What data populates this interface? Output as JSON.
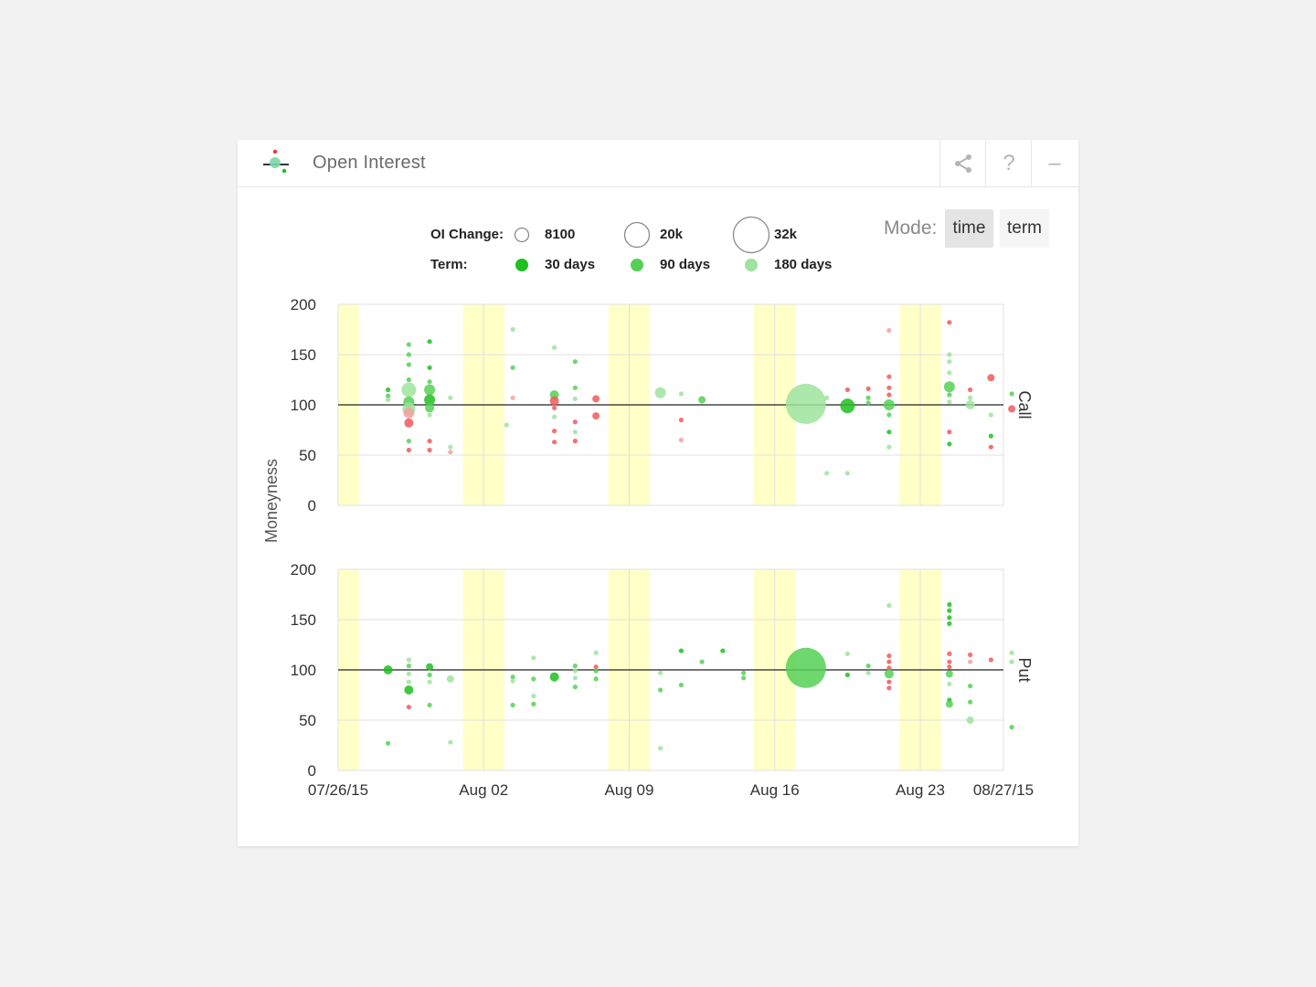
{
  "header": {
    "title": "Open Interest",
    "share_icon": "share-icon",
    "help_label": "?",
    "minimize_label": "–"
  },
  "legend": {
    "oi_change_label": "OI Change:",
    "size_items": [
      "8100",
      "20k",
      "32k"
    ],
    "term_label": "Term:",
    "term_items": [
      "30 days",
      "90 days",
      "180 days"
    ],
    "term_colors": [
      "#1fbf1f",
      "#55d055",
      "#9ee39e"
    ]
  },
  "mode": {
    "label": "Mode:",
    "options": [
      "time",
      "term"
    ],
    "active": "time"
  },
  "colors": {
    "highlight": "#ffffc8",
    "increase_30": "#1fbf1f",
    "increase_90": "#55d055",
    "increase_180": "#9ee39e",
    "decrease": "#ef5a5a",
    "decrease_light": "#f4a0a0",
    "gridline": "#e0e0e0",
    "reference_line": "#222222"
  },
  "chart_data": {
    "type": "scatter",
    "ylabel": "Moneyness",
    "ylim": [
      0,
      200
    ],
    "yticks": [
      0,
      50,
      100,
      150,
      200
    ],
    "xlim": [
      "2015-07-26",
      "2015-08-27"
    ],
    "xticks": [
      {
        "date": "2015-07-26",
        "label": "07/26/15"
      },
      {
        "date": "2015-08-02",
        "label": "Aug 02"
      },
      {
        "date": "2015-08-09",
        "label": "Aug 09"
      },
      {
        "date": "2015-08-16",
        "label": "Aug 16"
      },
      {
        "date": "2015-08-23",
        "label": "Aug 23"
      },
      {
        "date": "2015-08-27",
        "label": "08/27/15"
      }
    ],
    "weekend_bands": [
      [
        "2015-07-26",
        "2015-07-27"
      ],
      [
        "2015-08-01",
        "2015-08-03"
      ],
      [
        "2015-08-08",
        "2015-08-10"
      ],
      [
        "2015-08-15",
        "2015-08-17"
      ],
      [
        "2015-08-22",
        "2015-08-24"
      ],
      [
        "2015-08-27",
        "2015-08-28"
      ]
    ],
    "reference_y": 100,
    "panels": [
      {
        "name": "Call",
        "points": [
          {
            "date": "2015-07-28.4",
            "y": 115,
            "c": "30"
          },
          {
            "date": "2015-07-28.4",
            "y": 109,
            "c": "90"
          },
          {
            "date": "2015-07-28.4",
            "y": 105,
            "c": "180"
          },
          {
            "date": "2015-07-29.4",
            "y": 160,
            "c": "90"
          },
          {
            "date": "2015-07-29.4",
            "y": 150,
            "c": "90"
          },
          {
            "date": "2015-07-29.4",
            "y": 140,
            "c": "90"
          },
          {
            "date": "2015-07-29.4",
            "y": 125,
            "c": "90"
          },
          {
            "date": "2015-07-29.4",
            "y": 115,
            "c": "180",
            "s": 8
          },
          {
            "date": "2015-07-29.4",
            "y": 103,
            "c": "90",
            "s": 6
          },
          {
            "date": "2015-07-29.4",
            "y": 96,
            "c": "180",
            "s": 7
          },
          {
            "date": "2015-07-29.4",
            "y": 92,
            "c": "rl",
            "s": 6
          },
          {
            "date": "2015-07-29.4",
            "y": 82,
            "c": "r",
            "s": 5
          },
          {
            "date": "2015-07-29.4",
            "y": 64,
            "c": "90"
          },
          {
            "date": "2015-07-29.4",
            "y": 55,
            "c": "r"
          },
          {
            "date": "2015-07-30.4",
            "y": 163,
            "c": "30"
          },
          {
            "date": "2015-07-30.4",
            "y": 137,
            "c": "30"
          },
          {
            "date": "2015-07-30.4",
            "y": 123,
            "c": "90"
          },
          {
            "date": "2015-07-30.4",
            "y": 115,
            "c": "90",
            "s": 6
          },
          {
            "date": "2015-07-30.4",
            "y": 105,
            "c": "30",
            "s": 6
          },
          {
            "date": "2015-07-30.4",
            "y": 97,
            "c": "90",
            "s": 5
          },
          {
            "date": "2015-07-30.4",
            "y": 90,
            "c": "180"
          },
          {
            "date": "2015-07-30.4",
            "y": 64,
            "c": "r"
          },
          {
            "date": "2015-07-30.4",
            "y": 55,
            "c": "r"
          },
          {
            "date": "2015-07-31.4",
            "y": 107,
            "c": "180"
          },
          {
            "date": "2015-07-31.4",
            "y": 58,
            "c": "180"
          },
          {
            "date": "2015-07-31.4",
            "y": 53,
            "c": "rl"
          },
          {
            "date": "2015-08-03.4",
            "y": 175,
            "c": "180"
          },
          {
            "date": "2015-08-03.4",
            "y": 137,
            "c": "90"
          },
          {
            "date": "2015-08-03.4",
            "y": 107,
            "c": "rl"
          },
          {
            "date": "2015-08-03.1",
            "y": 80,
            "c": "180"
          },
          {
            "date": "2015-08-05.4",
            "y": 157,
            "c": "180"
          },
          {
            "date": "2015-08-05.4",
            "y": 110,
            "c": "90",
            "s": 5
          },
          {
            "date": "2015-08-05.4",
            "y": 104,
            "c": "r",
            "s": 5
          },
          {
            "date": "2015-08-05.4",
            "y": 97,
            "c": "r"
          },
          {
            "date": "2015-08-05.4",
            "y": 88,
            "c": "180"
          },
          {
            "date": "2015-08-05.4",
            "y": 74,
            "c": "r"
          },
          {
            "date": "2015-08-05.4",
            "y": 63,
            "c": "r"
          },
          {
            "date": "2015-08-06.4",
            "y": 143,
            "c": "90"
          },
          {
            "date": "2015-08-06.4",
            "y": 117,
            "c": "90"
          },
          {
            "date": "2015-08-06.4",
            "y": 106,
            "c": "180"
          },
          {
            "date": "2015-08-06.4",
            "y": 83,
            "c": "r"
          },
          {
            "date": "2015-08-06.4",
            "y": 73,
            "c": "180"
          },
          {
            "date": "2015-08-06.4",
            "y": 64,
            "c": "r"
          },
          {
            "date": "2015-08-07.4",
            "y": 106,
            "c": "r",
            "s": 4
          },
          {
            "date": "2015-08-07.4",
            "y": 89,
            "c": "r",
            "s": 4
          },
          {
            "date": "2015-08-10.5",
            "y": 112,
            "c": "180",
            "s": 6
          },
          {
            "date": "2015-08-11.5",
            "y": 111,
            "c": "180"
          },
          {
            "date": "2015-08-11.5",
            "y": 85,
            "c": "r"
          },
          {
            "date": "2015-08-11.5",
            "y": 65,
            "c": "rl"
          },
          {
            "date": "2015-08-12.5",
            "y": 105,
            "c": "90",
            "s": 4
          },
          {
            "date": "2015-08-17.5",
            "y": 101,
            "c": "180",
            "s": 22
          },
          {
            "date": "2015-08-18.5",
            "y": 107,
            "c": "180"
          },
          {
            "date": "2015-08-18.5",
            "y": 32,
            "c": "180"
          },
          {
            "date": "2015-08-19.5",
            "y": 115,
            "c": "r"
          },
          {
            "date": "2015-08-19.5",
            "y": 99,
            "c": "30",
            "s": 8
          },
          {
            "date": "2015-08-19.5",
            "y": 32,
            "c": "180"
          },
          {
            "date": "2015-08-20.5",
            "y": 116,
            "c": "r"
          },
          {
            "date": "2015-08-20.5",
            "y": 107,
            "c": "90"
          },
          {
            "date": "2015-08-20.5",
            "y": 102,
            "c": "90"
          },
          {
            "date": "2015-08-21.5",
            "y": 174,
            "c": "rl"
          },
          {
            "date": "2015-08-21.5",
            "y": 128,
            "c": "r"
          },
          {
            "date": "2015-08-21.5",
            "y": 117,
            "c": "r"
          },
          {
            "date": "2015-08-21.5",
            "y": 110,
            "c": "r"
          },
          {
            "date": "2015-08-21.5",
            "y": 100,
            "c": "90",
            "s": 6
          },
          {
            "date": "2015-08-21.5",
            "y": 90,
            "c": "90"
          },
          {
            "date": "2015-08-21.5",
            "y": 73,
            "c": "30"
          },
          {
            "date": "2015-08-21.5",
            "y": 58,
            "c": "180"
          },
          {
            "date": "2015-08-24.4",
            "y": 182,
            "c": "r"
          },
          {
            "date": "2015-08-24.4",
            "y": 150,
            "c": "180"
          },
          {
            "date": "2015-08-24.4",
            "y": 143,
            "c": "180"
          },
          {
            "date": "2015-08-24.4",
            "y": 132,
            "c": "180"
          },
          {
            "date": "2015-08-24.4",
            "y": 118,
            "c": "90",
            "s": 6
          },
          {
            "date": "2015-08-24.4",
            "y": 110,
            "c": "90"
          },
          {
            "date": "2015-08-24.4",
            "y": 103,
            "c": "180"
          },
          {
            "date": "2015-08-24.4",
            "y": 73,
            "c": "r"
          },
          {
            "date": "2015-08-24.4",
            "y": 61,
            "c": "30"
          },
          {
            "date": "2015-08-25.4",
            "y": 115,
            "c": "r"
          },
          {
            "date": "2015-08-25.4",
            "y": 107,
            "c": "180"
          },
          {
            "date": "2015-08-25.4",
            "y": 100,
            "c": "180",
            "s": 5
          },
          {
            "date": "2015-08-26.4",
            "y": 127,
            "c": "r",
            "s": 4
          },
          {
            "date": "2015-08-26.4",
            "y": 90,
            "c": "180"
          },
          {
            "date": "2015-08-26.4",
            "y": 69,
            "c": "30"
          },
          {
            "date": "2015-08-26.4",
            "y": 58,
            "c": "r"
          },
          {
            "date": "2015-08-27.4",
            "y": 111,
            "c": "90"
          },
          {
            "date": "2015-08-27.4",
            "y": 96,
            "c": "r",
            "s": 4
          }
        ]
      },
      {
        "name": "Put",
        "points": [
          {
            "date": "2015-07-28.4",
            "y": 100,
            "c": "30",
            "s": 5
          },
          {
            "date": "2015-07-28.4",
            "y": 27,
            "c": "90"
          },
          {
            "date": "2015-07-29.4",
            "y": 110,
            "c": "180"
          },
          {
            "date": "2015-07-29.4",
            "y": 104,
            "c": "90"
          },
          {
            "date": "2015-07-29.4",
            "y": 96,
            "c": "180"
          },
          {
            "date": "2015-07-29.4",
            "y": 88,
            "c": "180"
          },
          {
            "date": "2015-07-29.4",
            "y": 80,
            "c": "30",
            "s": 5
          },
          {
            "date": "2015-07-29.4",
            "y": 63,
            "c": "r"
          },
          {
            "date": "2015-07-30.4",
            "y": 103,
            "c": "30",
            "s": 4
          },
          {
            "date": "2015-07-30.4",
            "y": 95,
            "c": "90"
          },
          {
            "date": "2015-07-30.4",
            "y": 88,
            "c": "180"
          },
          {
            "date": "2015-07-30.4",
            "y": 65,
            "c": "90"
          },
          {
            "date": "2015-07-31.4",
            "y": 91,
            "c": "180",
            "s": 4
          },
          {
            "date": "2015-07-31.4",
            "y": 28,
            "c": "180"
          },
          {
            "date": "2015-08-03.4",
            "y": 93,
            "c": "90"
          },
          {
            "date": "2015-08-03.4",
            "y": 89,
            "c": "180"
          },
          {
            "date": "2015-08-03.4",
            "y": 65,
            "c": "90"
          },
          {
            "date": "2015-08-04.4",
            "y": 112,
            "c": "180"
          },
          {
            "date": "2015-08-04.4",
            "y": 91,
            "c": "90"
          },
          {
            "date": "2015-08-04.4",
            "y": 74,
            "c": "180"
          },
          {
            "date": "2015-08-04.4",
            "y": 66,
            "c": "90"
          },
          {
            "date": "2015-08-05.4",
            "y": 93,
            "c": "30",
            "s": 5
          },
          {
            "date": "2015-08-06.4",
            "y": 104,
            "c": "90"
          },
          {
            "date": "2015-08-06.4",
            "y": 99,
            "c": "180"
          },
          {
            "date": "2015-08-06.4",
            "y": 92,
            "c": "180"
          },
          {
            "date": "2015-08-06.4",
            "y": 83,
            "c": "90"
          },
          {
            "date": "2015-08-07.4",
            "y": 117,
            "c": "180"
          },
          {
            "date": "2015-08-07.4",
            "y": 103,
            "c": "r"
          },
          {
            "date": "2015-08-07.4",
            "y": 99,
            "c": "90"
          },
          {
            "date": "2015-08-07.4",
            "y": 91,
            "c": "90"
          },
          {
            "date": "2015-08-10.5",
            "y": 97,
            "c": "180"
          },
          {
            "date": "2015-08-10.5",
            "y": 80,
            "c": "90"
          },
          {
            "date": "2015-08-10.5",
            "y": 22,
            "c": "180"
          },
          {
            "date": "2015-08-11.5",
            "y": 119,
            "c": "30"
          },
          {
            "date": "2015-08-11.5",
            "y": 85,
            "c": "90"
          },
          {
            "date": "2015-08-12.5",
            "y": 108,
            "c": "90"
          },
          {
            "date": "2015-08-13.5",
            "y": 119,
            "c": "30"
          },
          {
            "date": "2015-08-14.5",
            "y": 97,
            "c": "90"
          },
          {
            "date": "2015-08-14.5",
            "y": 92,
            "c": "90"
          },
          {
            "date": "2015-08-17.5",
            "y": 102,
            "c": "90",
            "s": 22
          },
          {
            "date": "2015-08-19.5",
            "y": 116,
            "c": "180"
          },
          {
            "date": "2015-08-19.5",
            "y": 95,
            "c": "30"
          },
          {
            "date": "2015-08-20.5",
            "y": 104,
            "c": "90"
          },
          {
            "date": "2015-08-20.5",
            "y": 97,
            "c": "180"
          },
          {
            "date": "2015-08-21.5",
            "y": 164,
            "c": "180"
          },
          {
            "date": "2015-08-21.5",
            "y": 114,
            "c": "r"
          },
          {
            "date": "2015-08-21.5",
            "y": 108,
            "c": "r"
          },
          {
            "date": "2015-08-21.5",
            "y": 102,
            "c": "r"
          },
          {
            "date": "2015-08-21.5",
            "y": 96,
            "c": "90",
            "s": 5
          },
          {
            "date": "2015-08-21.5",
            "y": 88,
            "c": "r"
          },
          {
            "date": "2015-08-21.5",
            "y": 82,
            "c": "r"
          },
          {
            "date": "2015-08-24.4",
            "y": 165,
            "c": "30"
          },
          {
            "date": "2015-08-24.4",
            "y": 159,
            "c": "30"
          },
          {
            "date": "2015-08-24.4",
            "y": 152,
            "c": "30"
          },
          {
            "date": "2015-08-24.4",
            "y": 146,
            "c": "30"
          },
          {
            "date": "2015-08-24.4",
            "y": 116,
            "c": "r"
          },
          {
            "date": "2015-08-24.4",
            "y": 108,
            "c": "r"
          },
          {
            "date": "2015-08-24.4",
            "y": 103,
            "c": "r"
          },
          {
            "date": "2015-08-24.4",
            "y": 96,
            "c": "90",
            "s": 4
          },
          {
            "date": "2015-08-24.4",
            "y": 86,
            "c": "180"
          },
          {
            "date": "2015-08-24.4",
            "y": 70,
            "c": "30"
          },
          {
            "date": "2015-08-24.4",
            "y": 66,
            "c": "90",
            "s": 4
          },
          {
            "date": "2015-08-25.4",
            "y": 115,
            "c": "r"
          },
          {
            "date": "2015-08-25.4",
            "y": 108,
            "c": "rl"
          },
          {
            "date": "2015-08-25.4",
            "y": 84,
            "c": "90"
          },
          {
            "date": "2015-08-25.4",
            "y": 68,
            "c": "90"
          },
          {
            "date": "2015-08-25.4",
            "y": 50,
            "c": "180",
            "s": 4
          },
          {
            "date": "2015-08-26.4",
            "y": 110,
            "c": "r"
          },
          {
            "date": "2015-08-27.4",
            "y": 117,
            "c": "180"
          },
          {
            "date": "2015-08-27.4",
            "y": 108,
            "c": "180"
          },
          {
            "date": "2015-08-27.4",
            "y": 43,
            "c": "90"
          }
        ]
      }
    ]
  }
}
